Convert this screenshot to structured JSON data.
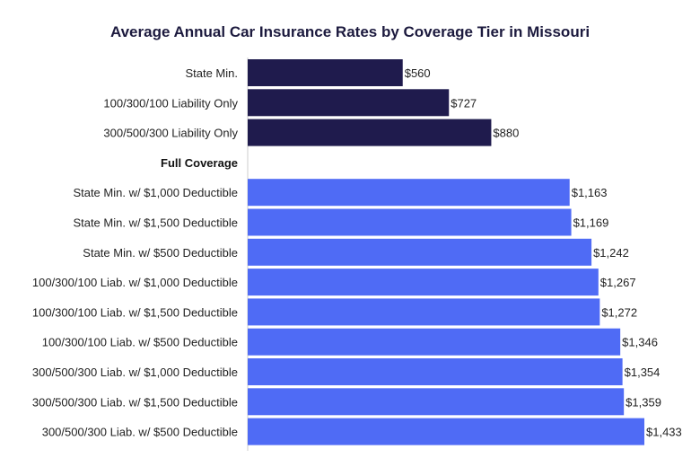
{
  "chart_data": {
    "type": "bar",
    "orientation": "horizontal",
    "title": "Average Annual Car Insurance Rates by Coverage Tier in Missouri",
    "xlabel": "",
    "ylabel": "",
    "xlim": [
      0,
      1433
    ],
    "grid": false,
    "legend": "none",
    "colors": {
      "liability": "#1f1b4d",
      "full": "#4f6bf5"
    },
    "group_header": "Full Coverage",
    "categories": [
      "State Min.",
      "100/300/100 Liability Only",
      "300/500/300 Liability Only",
      "Full Coverage",
      "State Min. w/ $1,000 Deductible",
      "State Min. w/ $1,500 Deductible",
      "State Min. w/ $500 Deductible",
      "100/300/100 Liab. w/ $1,000 Deductible",
      "100/300/100 Liab. w/ $1,500 Deductible",
      "100/300/100 Liab. w/ $500 Deductible",
      "300/500/300 Liab. w/ $1,000 Deductible",
      "300/500/300 Liab. w/ $1,500 Deductible",
      "300/500/300 Liab. w/ $500 Deductible"
    ],
    "values": [
      560,
      727,
      880,
      null,
      1163,
      1169,
      1242,
      1267,
      1272,
      1346,
      1354,
      1359,
      1433
    ],
    "value_labels": [
      "$560",
      "$727",
      "$880",
      "",
      "$1,163",
      "$1,169",
      "$1,242",
      "$1,267",
      "$1,272",
      "$1,346",
      "$1,354",
      "$1,359",
      "$1,433"
    ],
    "groups": [
      "liability",
      "liability",
      "liability",
      "header",
      "full",
      "full",
      "full",
      "full",
      "full",
      "full",
      "full",
      "full",
      "full"
    ]
  }
}
